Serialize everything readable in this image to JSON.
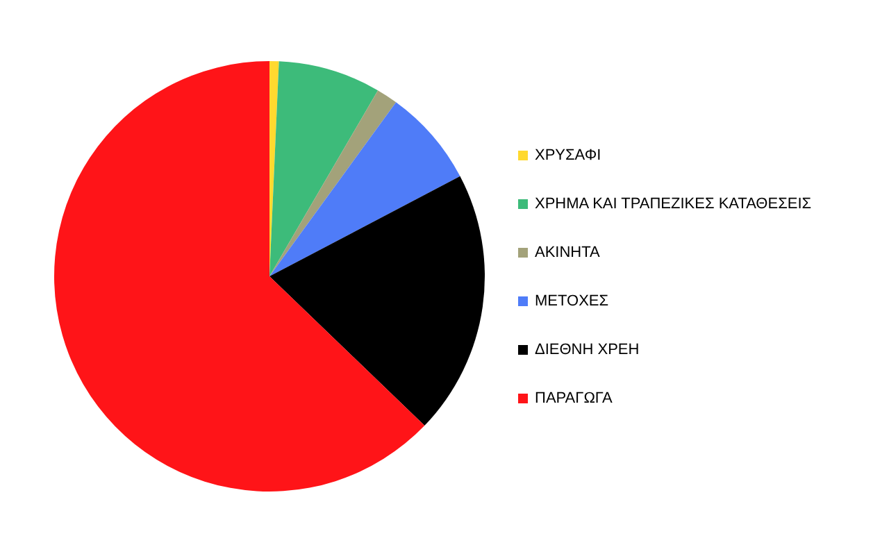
{
  "chart_data": {
    "type": "pie",
    "categories": [
      "ΧΡΥΣΑΦΙ",
      "ΧΡΗΜΑ ΚΑΙ ΤΡΑΠΕΖΙΚΕΣ ΚΑΤΑΘΕΣΕΙΣ",
      "ΑΚΙΝΗΤΑ",
      "ΜΕΤΟΧΕΣ",
      "ΔΙΕΘΝΗ ΧΡΕΗ",
      "ΠΑΡΑΓΩΓΑ"
    ],
    "values": [
      0.7,
      7.7,
      1.6,
      7.3,
      19.9,
      62.8
    ],
    "colors": [
      "#ffd92f",
      "#3dbb7a",
      "#a3a27a",
      "#4f7cf8",
      "#000000",
      "#ff1418"
    ],
    "legend": "right"
  }
}
